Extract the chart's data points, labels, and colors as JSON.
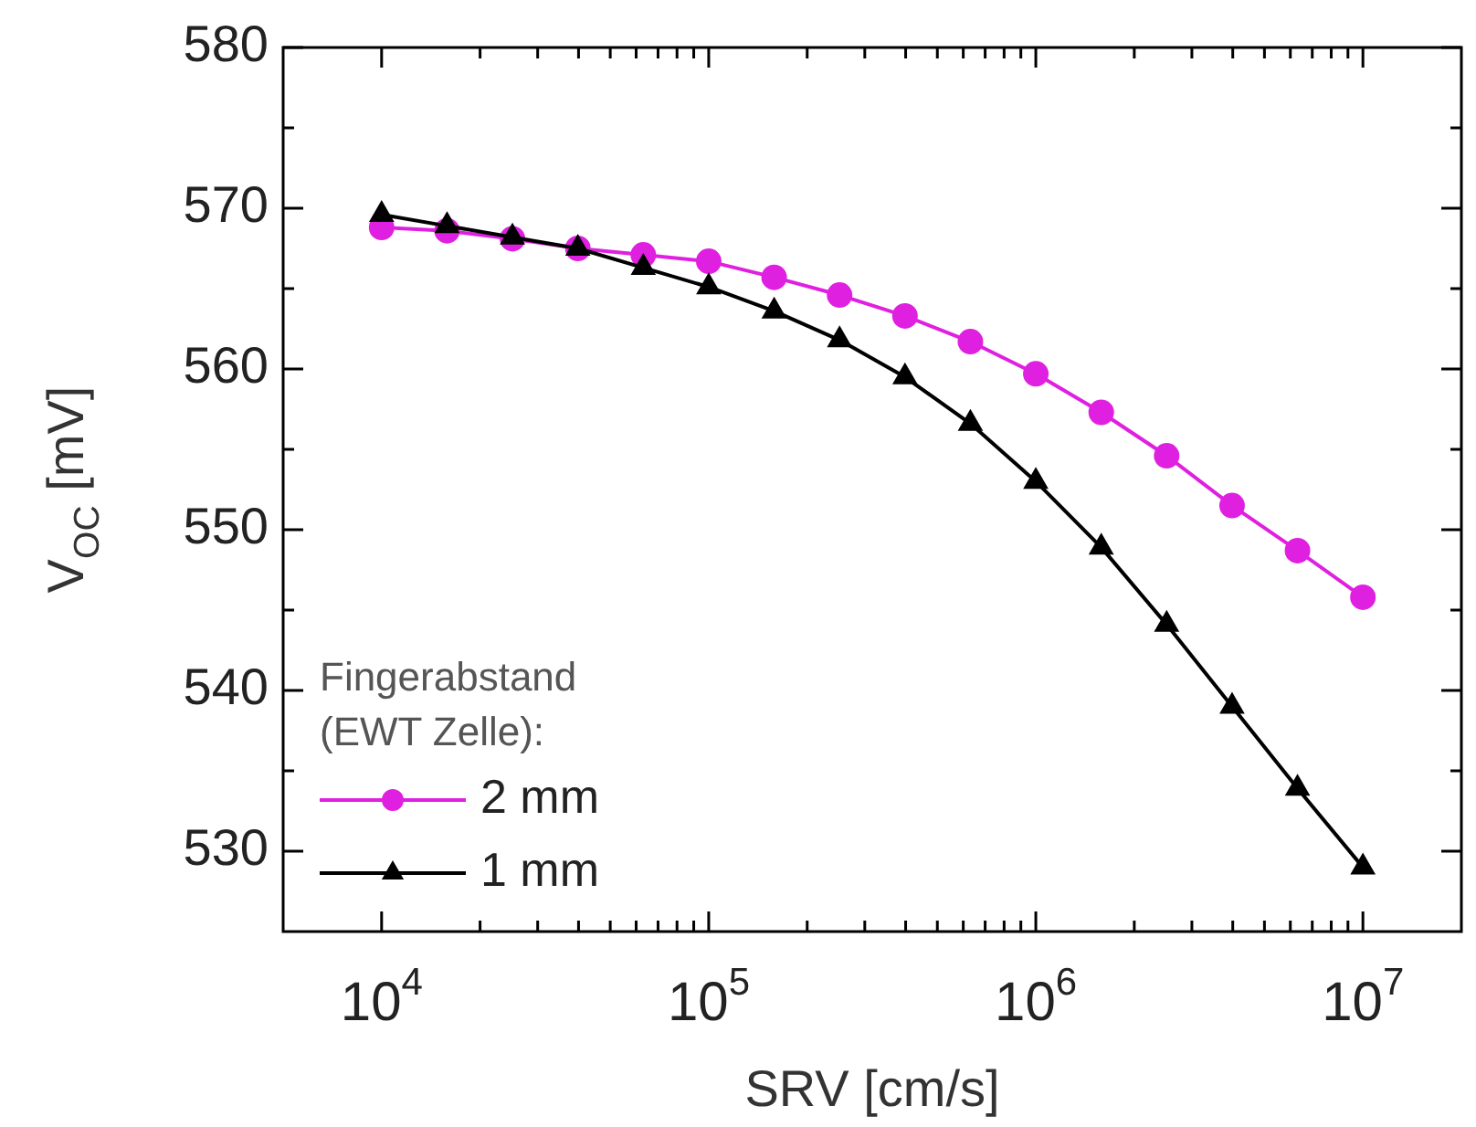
{
  "chart_data": {
    "type": "line",
    "xlabel": "SRV [cm/s]",
    "ylabel": "V$_{OC}$ [mV]",
    "legend_title": "Fingerabstand\n(EWT Zelle):",
    "legend": "bottom left",
    "log": "x",
    "grid": false,
    "line_style": "solid",
    "x": [
      10000,
      15850,
      25120,
      39810,
      63100,
      100000,
      158500,
      251200,
      398100,
      631000,
      1000000,
      1585000,
      2512000,
      3981000,
      6310000,
      10000000
    ],
    "xlim": [
      5000,
      20000000
    ],
    "xticks": [
      {
        "value": 10000,
        "label": "10$^{4}$"
      },
      {
        "value": 20000,
        "label": null
      },
      {
        "value": 30000,
        "label": null
      },
      {
        "value": 40000,
        "label": null
      },
      {
        "value": 50000,
        "label": null
      },
      {
        "value": 60000,
        "label": null
      },
      {
        "value": 70000,
        "label": null
      },
      {
        "value": 80000,
        "label": null
      },
      {
        "value": 90000,
        "label": null
      },
      {
        "value": 100000,
        "label": "10$^{5}$"
      },
      {
        "value": 200000,
        "label": null
      },
      {
        "value": 300000,
        "label": null
      },
      {
        "value": 400000,
        "label": null
      },
      {
        "value": 500000,
        "label": null
      },
      {
        "value": 600000,
        "label": null
      },
      {
        "value": 700000,
        "label": null
      },
      {
        "value": 800000,
        "label": null
      },
      {
        "value": 900000,
        "label": null
      },
      {
        "value": 1000000,
        "label": "10$^{6}$"
      },
      {
        "value": 2000000,
        "label": null
      },
      {
        "value": 3000000,
        "label": null
      },
      {
        "value": 4000000,
        "label": null
      },
      {
        "value": 5000000,
        "label": null
      },
      {
        "value": 6000000,
        "label": null
      },
      {
        "value": 7000000,
        "label": null
      },
      {
        "value": 8000000,
        "label": null
      },
      {
        "value": 9000000,
        "label": null
      },
      {
        "value": 10000000,
        "label": "10$^{7}$"
      }
    ],
    "ylim": [
      525,
      580
    ],
    "yticks": [
      530,
      {
        "value": 535,
        "label": null
      },
      540,
      {
        "value": 545,
        "label": null
      },
      550,
      {
        "value": 555,
        "label": null
      },
      560,
      {
        "value": 565,
        "label": null
      },
      570,
      {
        "value": 575,
        "label": null
      },
      580
    ],
    "series": [
      {
        "name": "2 mm",
        "color": "#e020e0",
        "marker": "circle",
        "values": [
          568.8,
          568.6,
          568.1,
          567.5,
          567.1,
          566.7,
          565.7,
          564.6,
          563.3,
          561.7,
          559.7,
          557.3,
          554.6,
          551.5,
          548.7,
          545.8
        ]
      },
      {
        "name": "1 mm",
        "color": "#000000",
        "marker": "triangle",
        "values": [
          569.6,
          568.9,
          568.2,
          567.5,
          566.3,
          565.1,
          563.6,
          561.8,
          559.5,
          556.6,
          553.0,
          548.9,
          544.1,
          539.0,
          533.9,
          529.0
        ]
      }
    ]
  }
}
